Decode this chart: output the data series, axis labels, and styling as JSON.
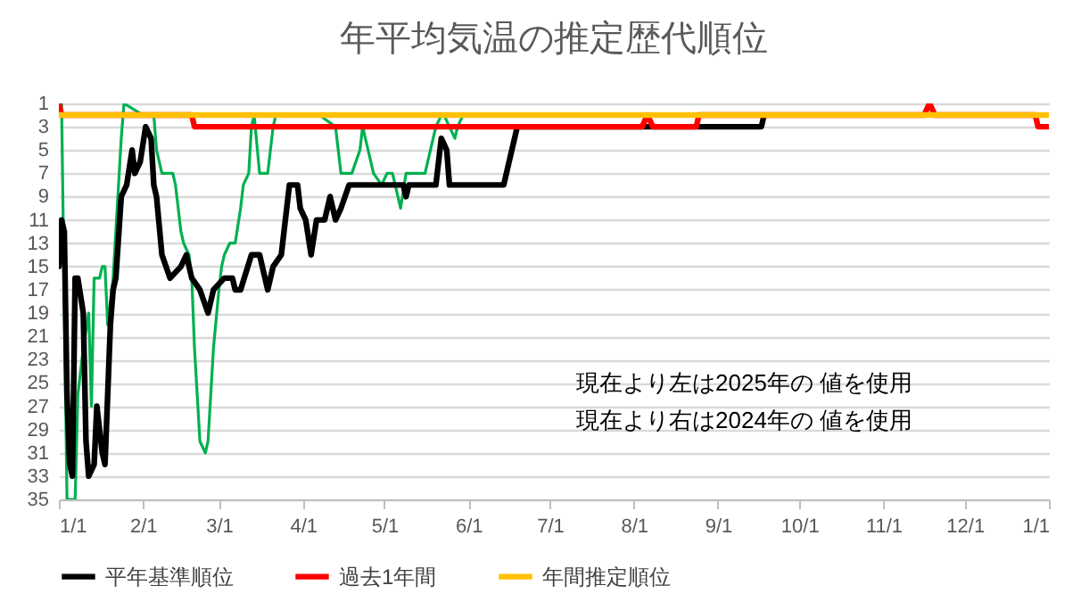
{
  "chart_data": {
    "type": "line",
    "title": "年平均気温の推定歴代順位",
    "annotations": [
      "現在より左は2025年の 値を使用",
      "現在より右は2024年の 値を使用"
    ],
    "xlim": [
      "2025-01-01",
      "2026-01-01"
    ],
    "xticks": [
      {
        "value": "2025-01-01",
        "label": "1/1"
      },
      {
        "value": "2025-02-01",
        "label": "2/1"
      },
      {
        "value": "2025-03-01",
        "label": "3/1"
      },
      {
        "value": "2025-04-01",
        "label": "4/1"
      },
      {
        "value": "2025-05-01",
        "label": "5/1"
      },
      {
        "value": "2025-06-01",
        "label": "6/1"
      },
      {
        "value": "2025-07-01",
        "label": "7/1"
      },
      {
        "value": "2025-08-01",
        "label": "8/1"
      },
      {
        "value": "2025-09-01",
        "label": "9/1"
      },
      {
        "value": "2025-10-01",
        "label": "10/1"
      },
      {
        "value": "2025-11-01",
        "label": "11/1"
      },
      {
        "value": "2025-12-01",
        "label": "12/1"
      },
      {
        "value": "2026-01-01",
        "label": "1/1"
      }
    ],
    "ylim": [
      35,
      1
    ],
    "yticks": [
      1,
      3,
      5,
      7,
      9,
      11,
      13,
      15,
      17,
      19,
      21,
      23,
      25,
      27,
      29,
      31,
      33,
      35
    ],
    "grid": "y",
    "legend": "bottom",
    "series": [
      {
        "color": "#00b050",
        "x": [
          "2025-01-01",
          "2025-01-02",
          "2025-01-04",
          "2025-01-07",
          "2025-01-08",
          "2025-01-10",
          "2025-01-12",
          "2025-01-13",
          "2025-01-14",
          "2025-01-16",
          "2025-01-17",
          "2025-01-18",
          "2025-01-19",
          "2025-01-21",
          "2025-01-23",
          "2025-01-24",
          "2025-01-25",
          "2025-02-01",
          "2025-02-05",
          "2025-02-06",
          "2025-02-08",
          "2025-02-12",
          "2025-02-13",
          "2025-02-15",
          "2025-02-16",
          "2025-02-18",
          "2025-02-19",
          "2025-02-20",
          "2025-02-22",
          "2025-02-24",
          "2025-02-25",
          "2025-02-27",
          "2025-03-01",
          "2025-03-02",
          "2025-03-03",
          "2025-03-05",
          "2025-03-07",
          "2025-03-09",
          "2025-03-10",
          "2025-03-12",
          "2025-03-13",
          "2025-03-14",
          "2025-03-16",
          "2025-03-19",
          "2025-03-21",
          "2025-03-22",
          "2025-04-07",
          "2025-04-13",
          "2025-04-15",
          "2025-04-19",
          "2025-04-22",
          "2025-04-23",
          "2025-04-25",
          "2025-04-27",
          "2025-04-30",
          "2025-05-02",
          "2025-05-04",
          "2025-05-05",
          "2025-05-07",
          "2025-05-09",
          "2025-05-16",
          "2025-05-18",
          "2025-05-20",
          "2025-05-22",
          "2025-05-23",
          "2025-05-25",
          "2025-05-27",
          "2025-05-28",
          "2025-05-30"
        ],
        "values": [
          1,
          1,
          35,
          35,
          26,
          22,
          19,
          27,
          16,
          16,
          15,
          15,
          20,
          16,
          8,
          4,
          1,
          2,
          2,
          5,
          7,
          7,
          8,
          12,
          13,
          14,
          16,
          22,
          30,
          31,
          30,
          22,
          17,
          15,
          14,
          13,
          13,
          10,
          8,
          7,
          3,
          2,
          7,
          7,
          3,
          2,
          2,
          3,
          7,
          7,
          5,
          3,
          5,
          7,
          8,
          7,
          7,
          8,
          10,
          7,
          7,
          5,
          3,
          2,
          2,
          3,
          4,
          3,
          2
        ]
      },
      {
        "name": "平年基準順位",
        "color": "#000000",
        "x": [
          "2025-01-01",
          "2025-01-02",
          "2025-01-03",
          "2025-01-04",
          "2025-01-05",
          "2025-01-06",
          "2025-01-07",
          "2025-01-08",
          "2025-01-10",
          "2025-01-11",
          "2025-01-12",
          "2025-01-14",
          "2025-01-15",
          "2025-01-17",
          "2025-01-18",
          "2025-01-20",
          "2025-01-21",
          "2025-01-22",
          "2025-01-24",
          "2025-01-26",
          "2025-01-28",
          "2025-01-29",
          "2025-01-31",
          "2025-02-02",
          "2025-02-04",
          "2025-02-05",
          "2025-02-06",
          "2025-02-08",
          "2025-02-11",
          "2025-02-15",
          "2025-02-17",
          "2025-02-19",
          "2025-02-22",
          "2025-02-25",
          "2025-02-27",
          "2025-03-03",
          "2025-03-06",
          "2025-03-07",
          "2025-03-09",
          "2025-03-13",
          "2025-03-16",
          "2025-03-19",
          "2025-03-21",
          "2025-03-24",
          "2025-03-26",
          "2025-03-27",
          "2025-03-30",
          "2025-03-31",
          "2025-04-02",
          "2025-04-04",
          "2025-04-06",
          "2025-04-09",
          "2025-04-11",
          "2025-04-13",
          "2025-04-15",
          "2025-04-18",
          "2025-05-08",
          "2025-05-09",
          "2025-05-10",
          "2025-05-20",
          "2025-05-22",
          "2025-05-24",
          "2025-05-25",
          "2025-06-14",
          "2025-06-16",
          "2025-06-18",
          "2025-06-19",
          "2025-09-17",
          "2025-09-18"
        ],
        "values": [
          15,
          11,
          12,
          26,
          32,
          33,
          16,
          16,
          19,
          30,
          33,
          32,
          27,
          31,
          32,
          20,
          17,
          16,
          9,
          8,
          5,
          7,
          6,
          3,
          4,
          8,
          9,
          14,
          16,
          15,
          14,
          16,
          17,
          19,
          17,
          16,
          16,
          17,
          17,
          14,
          14,
          17,
          15,
          14,
          10,
          8,
          8,
          10,
          11,
          14,
          11,
          11,
          9,
          11,
          10,
          8,
          8,
          9,
          8,
          8,
          4,
          5,
          8,
          8,
          6,
          4,
          3,
          3,
          2
        ]
      },
      {
        "name": "過去1年間",
        "color": "#ff0000",
        "x": [
          "2025-01-01",
          "2025-01-02",
          "2025-02-19",
          "2025-02-20",
          "2025-08-04",
          "2025-08-06",
          "2025-08-08",
          "2025-08-24",
          "2025-08-25",
          "2025-11-16",
          "2025-11-18",
          "2025-11-20",
          "2025-12-27",
          "2025-12-28",
          "2026-01-01"
        ],
        "values": [
          1,
          2,
          2,
          3,
          3,
          2,
          3,
          3,
          2,
          2,
          1,
          2,
          2,
          3,
          3
        ]
      },
      {
        "name": "年間推定順位",
        "color": "#ffc000",
        "x": [
          "2025-01-01",
          "2026-01-01"
        ],
        "values": [
          2,
          2
        ]
      }
    ]
  }
}
